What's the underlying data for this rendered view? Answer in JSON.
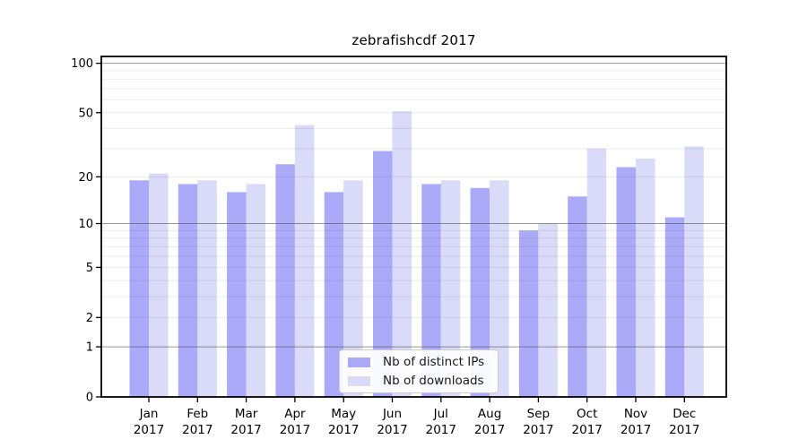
{
  "chart_data": {
    "type": "bar",
    "title": "zebrafishcdf 2017",
    "categories": [
      {
        "month": "Jan",
        "year": "2017"
      },
      {
        "month": "Feb",
        "year": "2017"
      },
      {
        "month": "Mar",
        "year": "2017"
      },
      {
        "month": "Apr",
        "year": "2017"
      },
      {
        "month": "May",
        "year": "2017"
      },
      {
        "month": "Jun",
        "year": "2017"
      },
      {
        "month": "Jul",
        "year": "2017"
      },
      {
        "month": "Aug",
        "year": "2017"
      },
      {
        "month": "Sep",
        "year": "2017"
      },
      {
        "month": "Oct",
        "year": "2017"
      },
      {
        "month": "Nov",
        "year": "2017"
      },
      {
        "month": "Dec",
        "year": "2017"
      }
    ],
    "series": [
      {
        "name": "Nb of distinct IPs",
        "color": "#aaaaf9",
        "values": [
          19,
          18,
          16,
          24,
          16,
          29,
          18,
          17,
          9,
          15,
          23,
          11
        ]
      },
      {
        "name": "Nb of downloads",
        "color": "#dadaf9",
        "values": [
          21,
          19,
          18,
          42,
          19,
          51,
          19,
          19,
          10,
          30,
          26,
          31
        ]
      }
    ],
    "y_axis": {
      "scale": "log10(1+y)",
      "tick_values": [
        0,
        1,
        2,
        5,
        10,
        20,
        50,
        100
      ],
      "tick_labels": [
        "0",
        "1",
        "2",
        "5",
        "10",
        "20",
        "50",
        "100"
      ],
      "top_value": 110,
      "major_gridlines": [
        1,
        10,
        100
      ],
      "minor_gridlines": [
        2,
        3,
        4,
        5,
        6,
        7,
        8,
        9,
        20,
        30,
        40,
        50,
        60,
        70,
        80,
        90
      ]
    },
    "xlabel": "",
    "ylabel": "",
    "grid": true,
    "legend_position": "bottom-center",
    "colors": {
      "spine": "#000000",
      "major_grid": "rgba(80,80,80,0.60)",
      "minor_grid": "rgba(0,0,0,0.08)",
      "tick_text": "#000000"
    }
  }
}
